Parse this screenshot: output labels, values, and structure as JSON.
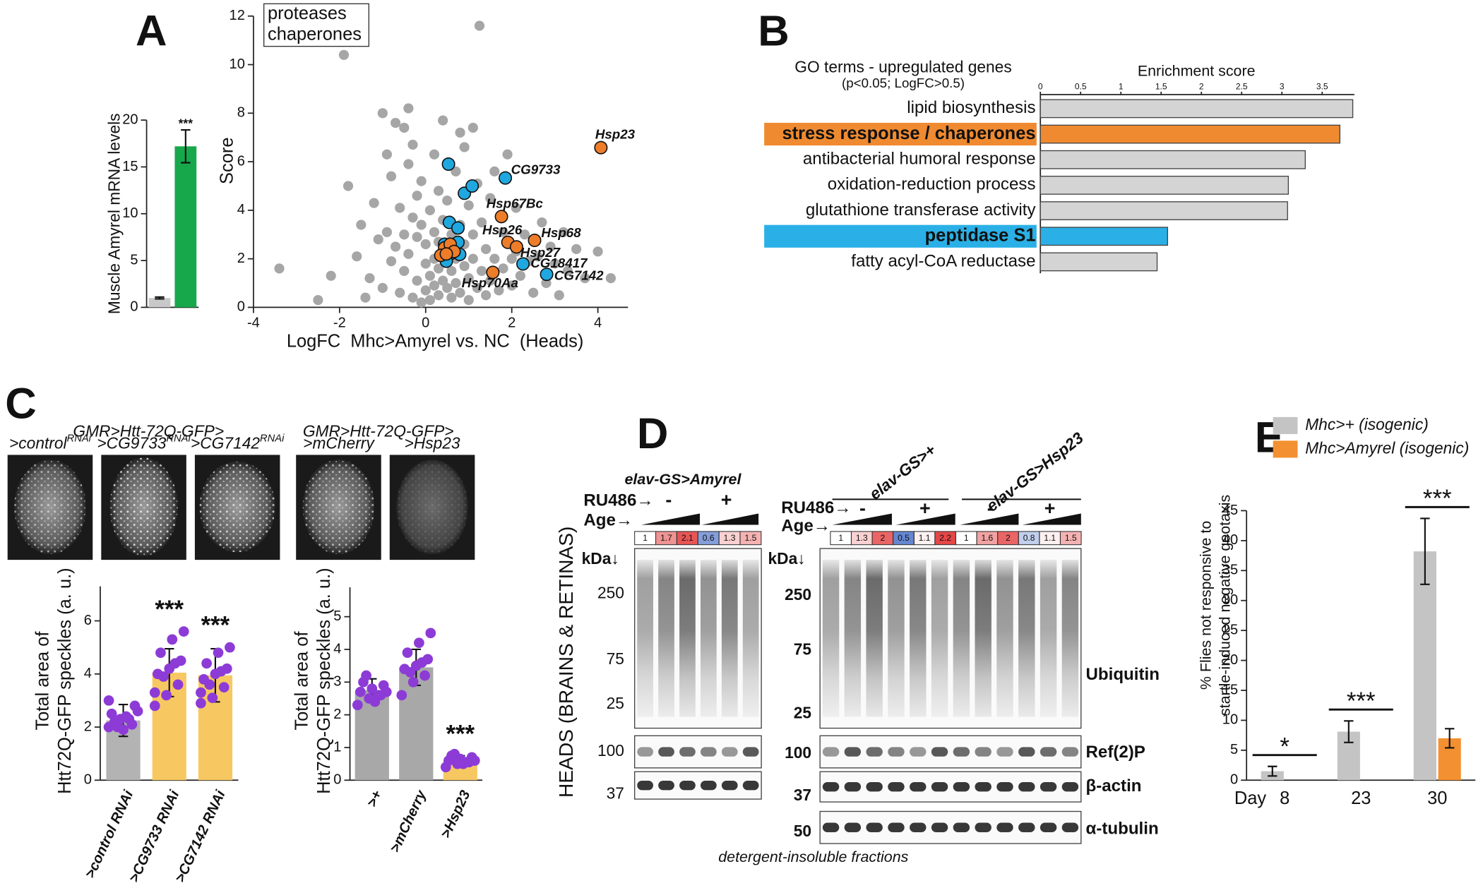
{
  "panel_labels": [
    "A",
    "B",
    "C",
    "D",
    "E"
  ],
  "chart_data": [
    {
      "type": "bar",
      "ylabel": "Muscle Amyrel mRNA levels",
      "categories": [
        null,
        null
      ],
      "values": [
        1.0,
        17.2
      ],
      "errors": [
        0.1,
        1.75
      ],
      "colors": [
        "#c8c8c8",
        "#18a84c"
      ],
      "significance": [
        null,
        "***"
      ],
      "ylim": [
        0,
        20
      ],
      "yticks": [
        0,
        5,
        10,
        15,
        20
      ]
    },
    {
      "type": "scatter",
      "xlabel": "LogFC  Mhc>Amyrel vs. NC  (Heads)",
      "ylabel": "Score",
      "xlim": [
        -4,
        4.7
      ],
      "ylim": [
        0,
        12
      ],
      "xticks": [
        -4,
        -2,
        0,
        2,
        4
      ],
      "yticks": [
        0,
        2,
        4,
        6,
        8,
        10,
        12
      ],
      "legend": "upper left",
      "series": [
        {
          "color": "#a6a6a6",
          "x": [
            -3.4,
            -2.5,
            -1.9,
            -1.8,
            -1.6,
            -1.5,
            -1.3,
            -1.2,
            -1.1,
            -1.0,
            -1.0,
            -0.9,
            -0.9,
            -0.8,
            -0.8,
            -0.7,
            -0.7,
            -0.6,
            -0.6,
            -0.5,
            -0.5,
            -0.5,
            -0.4,
            -0.4,
            -0.3,
            -0.3,
            -0.3,
            -0.2,
            -0.2,
            -0.2,
            -0.1,
            -0.1,
            -0.1,
            0.0,
            0.0,
            0.0,
            0.1,
            0.1,
            0.1,
            0.2,
            0.2,
            0.2,
            0.2,
            0.3,
            0.3,
            0.3,
            0.3,
            0.4,
            0.4,
            0.4,
            0.5,
            0.5,
            0.5,
            0.6,
            0.6,
            0.6,
            0.7,
            0.7,
            0.7,
            0.8,
            0.8,
            0.8,
            0.9,
            0.9,
            1.0,
            1.0,
            1.0,
            1.1,
            1.1,
            1.2,
            1.2,
            1.25,
            1.3,
            1.3,
            1.4,
            1.4,
            1.5,
            1.5,
            1.6,
            1.6,
            1.7,
            1.8,
            1.8,
            1.9,
            2.0,
            2.0,
            2.1,
            2.1,
            2.2,
            2.3,
            2.4,
            2.5,
            2.6,
            2.7,
            2.8,
            2.9,
            3.0,
            3.1,
            3.2,
            3.3,
            3.5,
            3.7,
            4.0,
            4.3,
            -1.4,
            -2.2,
            0.9,
            -0.4,
            1.1
          ],
          "values": [
            1.6,
            0.3,
            10.4,
            5.0,
            2.1,
            3.4,
            1.2,
            4.3,
            2.8,
            8.0,
            0.8,
            6.3,
            3.1,
            1.9,
            5.4,
            7.6,
            2.5,
            0.6,
            4.1,
            7.4,
            3.0,
            1.5,
            5.9,
            2.2,
            0.4,
            3.7,
            6.7,
            1.1,
            4.6,
            2.9,
            0.2,
            3.4,
            5.2,
            1.8,
            0.7,
            2.6,
            4.0,
            1.3,
            0.3,
            3.1,
            2.0,
            6.3,
            0.9,
            1.6,
            4.8,
            2.7,
            0.5,
            3.6,
            1.1,
            7.7,
            2.3,
            0.8,
            4.4,
            1.5,
            3.0,
            0.4,
            2.0,
            5.6,
            1.0,
            7.2,
            3.4,
            0.6,
            1.7,
            2.6,
            4.2,
            1.2,
            0.3,
            3.0,
            2.0,
            0.8,
            5.1,
            11.6,
            1.5,
            3.5,
            2.4,
            0.5,
            4.5,
            1.1,
            5.6,
            2.0,
            0.7,
            3.1,
            1.6,
            6.3,
            2.0,
            0.9,
            2.3,
            4.1,
            1.3,
            3.0,
            1.9,
            0.6,
            2.1,
            3.5,
            1.0,
            2.5,
            1.8,
            0.5,
            3.1,
            1.5,
            2.4,
            1.2,
            2.3,
            1.2,
            0.4,
            1.3,
            6.6,
            8.2,
            7.4
          ]
        },
        {
          "name": "proteases",
          "color": "#1fa8e0",
          "x": [
            0.53,
            0.9,
            1.08,
            0.55,
            0.75,
            0.44,
            0.75,
            0.57,
            0.79,
            0.48,
            1.85,
            2.26,
            2.81
          ],
          "values": [
            5.9,
            4.7,
            5.0,
            3.5,
            3.27,
            2.6,
            2.68,
            2.2,
            2.18,
            1.9,
            5.33,
            1.79,
            1.36
          ],
          "labels": [
            null,
            null,
            null,
            null,
            null,
            null,
            null,
            null,
            null,
            null,
            "CG9733",
            "CG18417",
            "CG7142"
          ]
        },
        {
          "name": "chaperones",
          "color": "#ee7d2a",
          "x": [
            4.07,
            1.76,
            1.91,
            2.11,
            2.53,
            1.56,
            0.44,
            0.57,
            0.35,
            0.66,
            0.48
          ],
          "values": [
            6.58,
            3.74,
            2.68,
            2.49,
            2.76,
            1.44,
            2.45,
            2.6,
            2.14,
            2.3,
            2.2
          ],
          "labels": [
            "Hsp23",
            "Hsp67Bc",
            "Hsp26",
            "Hsp27",
            "Hsp68",
            "Hsp70Aa",
            null,
            null,
            null,
            null,
            null
          ]
        }
      ]
    },
    {
      "type": "barh",
      "title": [
        "GO terms - upregulated genes",
        "(p<0.05; LogFC>0.5)"
      ],
      "xlabel": "Enrichment score",
      "categories": [
        "lipid biosynthesis",
        "stress response / chaperones",
        "antibacterial humoral response",
        "oxidation-reduction process",
        "glutathione transferase activity",
        "peptidase S1",
        "fatty acyl-CoA reductase"
      ],
      "values": [
        3.88,
        3.72,
        3.29,
        3.08,
        3.07,
        1.58,
        1.45
      ],
      "colors": [
        "#d4d4d4",
        "#f08a30",
        "#d4d4d4",
        "#d4d4d4",
        "#d4d4d4",
        "#2ab0e6",
        "#d4d4d4"
      ],
      "highlighted": [
        false,
        true,
        false,
        false,
        false,
        true,
        false
      ],
      "xlim": [
        0,
        3.9
      ],
      "xticks": [
        0,
        0.5,
        1,
        1.5,
        2,
        2.5,
        3,
        3.5
      ]
    },
    {
      "type": "bar",
      "ylabel": [
        "Total area of",
        "Htt72Q-GFP speckles (a. u.)"
      ],
      "categories": [
        ">control RNAi",
        ">CG9733 RNAi",
        ">CG7142 RNAi"
      ],
      "values": [
        2.25,
        4.05,
        3.95
      ],
      "errors": [
        0.6,
        0.9,
        1.0
      ],
      "colors": [
        "#b3b3b3",
        "#f7c862",
        "#f7c862"
      ],
      "point_color": "#8d3bd6",
      "points": [
        [
          2.0,
          2.3,
          2.1,
          2.5,
          1.9,
          2.8,
          2.2,
          2.4,
          2.6,
          2.0,
          2.3,
          3.0
        ],
        [
          2.8,
          3.2,
          3.6,
          4.0,
          4.2,
          4.5,
          4.8,
          5.3,
          5.6,
          3.9,
          4.4,
          3.3
        ],
        [
          2.9,
          3.1,
          3.5,
          3.8,
          4.0,
          4.2,
          4.4,
          4.8,
          5.0,
          3.6,
          4.1,
          3.3
        ]
      ],
      "significance": [
        null,
        "***",
        "***"
      ],
      "ylim": [
        0,
        7.3
      ],
      "yticks": [
        0,
        2,
        4,
        6
      ]
    },
    {
      "type": "bar",
      "ylabel": [
        "Total area of",
        "Htt72Q-GFP speckles (a. u.)"
      ],
      "categories": [
        ">+",
        ">mCherry",
        ">Hsp23"
      ],
      "values": [
        2.75,
        3.45,
        0.6
      ],
      "errors": [
        0.35,
        0.55,
        0.15
      ],
      "colors": [
        "#a8a8a8",
        "#a8a8a8",
        "#f7c862"
      ],
      "point_color": "#8d3bd6",
      "points": [
        [
          2.3,
          2.5,
          2.6,
          2.7,
          2.8,
          2.9,
          3.0,
          2.4,
          2.7,
          3.2,
          2.6
        ],
        [
          2.6,
          3.0,
          3.2,
          3.4,
          3.5,
          3.7,
          3.9,
          4.2,
          4.5,
          3.3,
          3.6
        ],
        [
          0.4,
          0.5,
          0.55,
          0.6,
          0.65,
          0.7,
          0.75,
          0.5,
          0.6,
          0.8,
          0.55
        ]
      ],
      "significance": [
        null,
        null,
        "***"
      ],
      "ylim": [
        0,
        5.9
      ],
      "yticks": [
        0,
        1,
        2,
        3,
        4,
        5
      ]
    },
    {
      "type": "bar",
      "ylabel": [
        "% Flies not responsive to",
        "startle-induced negative geotaxis"
      ],
      "xlabel": "Day",
      "categories": [
        "8",
        "23",
        "30"
      ],
      "series": [
        {
          "name": "Mhc>+ (isogenic)",
          "color": "#c4c4c4",
          "values": [
            1.5,
            8.1,
            38.2
          ],
          "errors": [
            0.8,
            1.8,
            5.5
          ]
        },
        {
          "name": "Mhc>Amyrel (isogenic)",
          "color": "#f39031",
          "values": [
            0,
            0,
            7.0
          ],
          "errors": [
            null,
            null,
            1.6
          ]
        }
      ],
      "significance": [
        "*",
        "***",
        "***"
      ],
      "legend": "top",
      "ylim": [
        0,
        45
      ],
      "yticks": [
        0,
        5,
        10,
        15,
        20,
        25,
        30,
        35,
        40,
        45
      ]
    }
  ],
  "panel_c": {
    "genotype": "GMR>Htt-72Q-GFP>",
    "images": [
      {
        "text": ">control",
        "sup": "RNAi"
      },
      {
        "text": ">CG9733",
        "sup": "RNAi"
      },
      {
        "text": ">CG7142",
        "sup": "RNAi"
      },
      {
        "text": ">mCherry"
      },
      {
        "text": ">Hsp23"
      }
    ]
  },
  "panel_d": {
    "left_title": "elav-GS>Amyrel",
    "group_labels": [
      "elav-GS>+",
      "elav-GS>Hsp23"
    ],
    "ru486": "RU486→",
    "age": "Age→",
    "treatment_left": [
      "-",
      "+"
    ],
    "treatment_right": [
      "-",
      "+",
      "-",
      "+"
    ],
    "age_left": [
      1,
      1.7,
      2.1,
      0.6,
      1.3,
      1.5
    ],
    "age_right": [
      1,
      1.3,
      2,
      0.5,
      1.1,
      2.2,
      1,
      1.6,
      2,
      0.8,
      1.1,
      1.5
    ],
    "kda": "kDa↓",
    "markers_left": [
      "250",
      "75",
      "25",
      "100",
      "37"
    ],
    "markers_right": [
      "250",
      "75",
      "25",
      "100",
      "37",
      "50"
    ],
    "blot_labels": [
      "Ubiquitin",
      "Ref(2)P",
      "β-actin",
      "α-tubulin"
    ],
    "side_label": "HEADS (BRAINS & RETINAS)",
    "footer": "detergent-insoluble fractions"
  }
}
